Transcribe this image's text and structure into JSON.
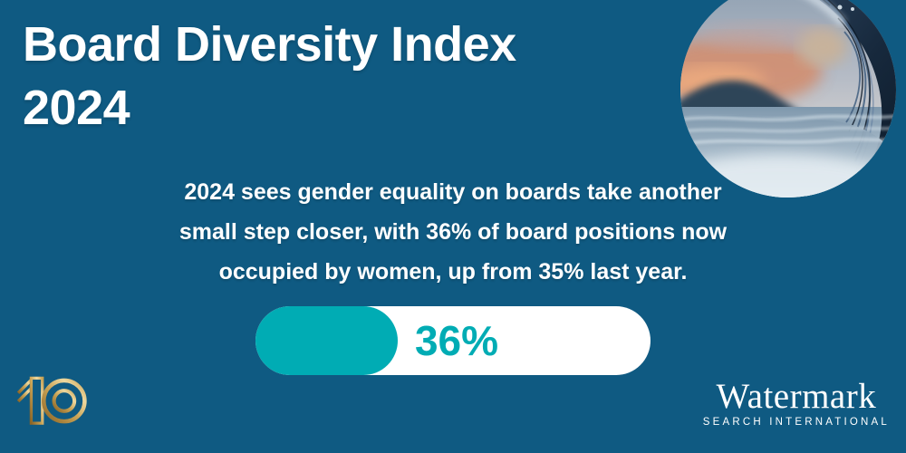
{
  "colors": {
    "background": "#0F5A82",
    "accent_teal": "#00ACB4",
    "text_white": "#FFFFFF",
    "gold": "#C9A254"
  },
  "title": {
    "lines": [
      "Board Diversity Index",
      "2024"
    ]
  },
  "subtitle": {
    "lines": [
      "2024 sees gender equality on boards take another",
      "small step closer, with 36% of board positions now",
      "occupied by women, up from 35% last year."
    ]
  },
  "progress": {
    "label": "36%"
  },
  "chart_data": {
    "type": "bar",
    "title": "Board Diversity Index 2024",
    "categories": [
      "Board positions occupied by women"
    ],
    "values": [
      36
    ],
    "unit": "%",
    "xlim": [
      0,
      100
    ],
    "bar_label": "36%",
    "previous_value_mentioned": 35,
    "legend_position": "none",
    "grid": false
  },
  "hero_image": {
    "name": "ocean-wave-photo",
    "description": "circular photo of a curling ocean wave at sunset"
  },
  "footer": {
    "anniversary_label": "10",
    "brand_name": "Watermark",
    "brand_tagline": "SEARCH INTERNATIONAL"
  }
}
